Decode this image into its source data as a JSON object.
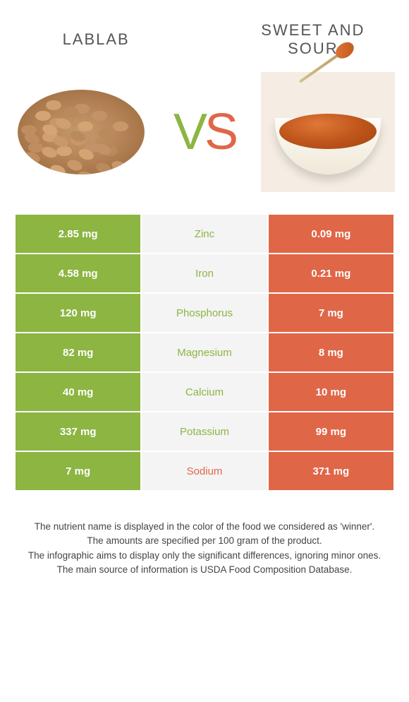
{
  "foods": {
    "left": {
      "name": "LABLAB"
    },
    "right": {
      "name": "SWEET AND SOUR"
    }
  },
  "vs": {
    "v": "V",
    "s": "S"
  },
  "colors": {
    "left": "#8cb542",
    "right": "#e06648",
    "mid_bg": "#f4f4f4",
    "page_bg": "#ffffff"
  },
  "table": {
    "rows": [
      {
        "nutrient": "Zinc",
        "left": "2.85 mg",
        "right": "0.09 mg",
        "winner": "left"
      },
      {
        "nutrient": "Iron",
        "left": "4.58 mg",
        "right": "0.21 mg",
        "winner": "left"
      },
      {
        "nutrient": "Phosphorus",
        "left": "120 mg",
        "right": "7 mg",
        "winner": "left"
      },
      {
        "nutrient": "Magnesium",
        "left": "82 mg",
        "right": "8 mg",
        "winner": "left"
      },
      {
        "nutrient": "Calcium",
        "left": "40 mg",
        "right": "10 mg",
        "winner": "left"
      },
      {
        "nutrient": "Potassium",
        "left": "337 mg",
        "right": "99 mg",
        "winner": "left"
      },
      {
        "nutrient": "Sodium",
        "left": "7 mg",
        "right": "371 mg",
        "winner": "right"
      }
    ]
  },
  "footer": {
    "line1": "The nutrient name is displayed in the color of the food we considered as 'winner'.",
    "line2": "The amounts are specified per 100 gram of the product.",
    "line3": "The infographic aims to display only the significant differences, ignoring minor ones.",
    "line4": "The main source of information is USDA Food Composition Database."
  }
}
